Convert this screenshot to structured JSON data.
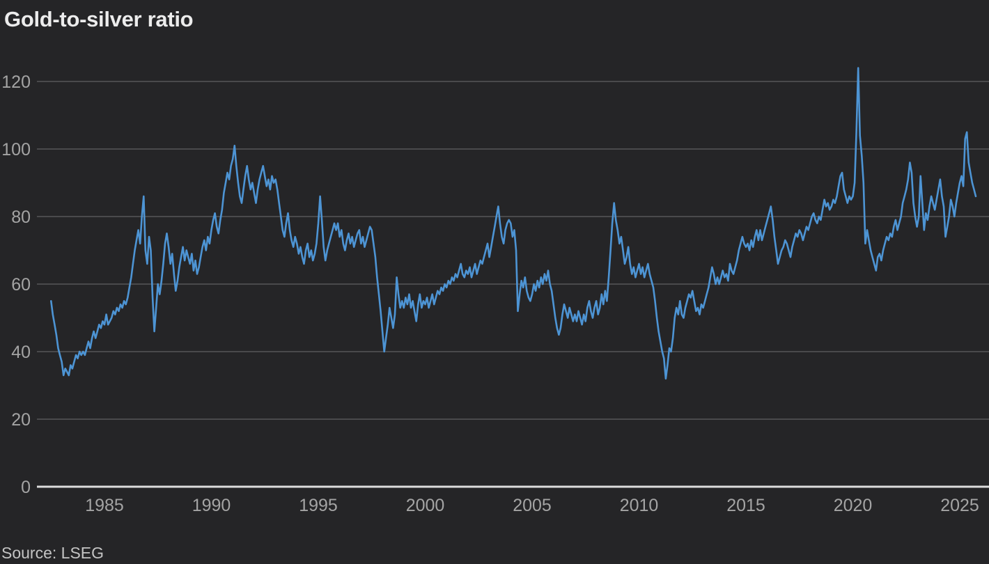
{
  "header": {
    "title": "Gold-to-silver ratio"
  },
  "footer": {
    "source": "Source: LSEG"
  },
  "colors": {
    "background": "#252527",
    "line": "#4d94d4",
    "grid": "#565658",
    "axis_baseline": "#dcdcdc",
    "title_text": "#ececec",
    "tick_text": "#a4a4a4",
    "source_text": "#c4c4c4"
  },
  "chart_data": {
    "type": "line",
    "title": "Gold-to-silver ratio",
    "source": "Source: LSEG",
    "xlabel": "",
    "ylabel": "",
    "legend": "none",
    "grid": "horizontal-only",
    "x_ticks": [
      1985,
      1990,
      1995,
      2000,
      2005,
      2010,
      2015,
      2020,
      2025
    ],
    "y_ticks": [
      0,
      20,
      40,
      60,
      80,
      100,
      120
    ],
    "ylim": [
      0,
      128
    ],
    "xlim_years": [
      1981.9,
      2026.4
    ],
    "x_start_year": 1982.5,
    "x_step_years": 0.0833333,
    "series": [
      {
        "name": "gold-to-silver-ratio",
        "values": [
          55,
          51,
          48,
          45,
          41,
          39,
          37,
          33,
          35,
          34,
          33,
          36,
          35,
          37,
          39,
          38,
          40,
          39,
          40,
          39,
          41,
          43,
          41,
          44,
          46,
          44,
          46,
          48,
          47,
          49,
          48,
          51,
          48,
          49,
          50,
          52,
          51,
          53,
          52,
          54,
          53,
          55,
          54,
          56,
          59,
          62,
          66,
          70,
          73,
          76,
          72,
          80,
          86,
          70,
          66,
          74,
          70,
          56,
          46,
          53,
          60,
          57,
          61,
          66,
          72,
          75,
          71,
          66,
          69,
          63,
          58,
          61,
          65,
          68,
          71,
          67,
          70,
          68,
          66,
          69,
          64,
          67,
          63,
          65,
          68,
          71,
          73,
          70,
          74,
          72,
          76,
          79,
          81,
          77,
          75,
          79,
          82,
          87,
          90,
          93,
          91,
          95,
          97,
          101,
          95,
          90,
          86,
          84,
          88,
          92,
          95,
          91,
          88,
          90,
          87,
          84,
          88,
          91,
          93,
          95,
          92,
          89,
          91,
          88,
          92,
          90,
          91,
          88,
          84,
          80,
          76,
          74,
          78,
          81,
          76,
          73,
          71,
          74,
          72,
          69,
          71,
          68,
          66,
          70,
          72,
          68,
          70,
          67,
          69,
          72,
          78,
          86,
          79,
          71,
          67,
          70,
          72,
          74,
          76,
          78,
          76,
          78,
          74,
          76,
          72,
          70,
          73,
          75,
          72,
          74,
          71,
          73,
          75,
          76,
          72,
          74,
          71,
          73,
          75,
          77,
          76,
          72,
          68,
          62,
          57,
          52,
          46,
          40,
          44,
          48,
          53,
          50,
          47,
          51,
          62,
          57,
          53,
          55,
          53,
          56,
          54,
          57,
          53,
          55,
          52,
          49,
          54,
          57,
          53,
          55,
          54,
          56,
          53,
          55,
          57,
          54,
          56,
          58,
          57,
          59,
          58,
          60,
          59,
          61,
          60,
          62,
          61,
          63,
          62,
          64,
          66,
          63,
          62,
          64,
          63,
          65,
          62,
          64,
          66,
          63,
          65,
          67,
          66,
          68,
          70,
          72,
          68,
          71,
          74,
          77,
          80,
          83,
          78,
          74,
          72,
          76,
          78,
          79,
          78,
          74,
          76,
          70,
          52,
          57,
          61,
          59,
          62,
          58,
          56,
          55,
          57,
          60,
          58,
          61,
          59,
          62,
          60,
          63,
          61,
          64,
          60,
          58,
          54,
          50,
          47,
          45,
          47,
          51,
          54,
          52,
          50,
          53,
          51,
          49,
          51,
          49,
          52,
          50,
          48,
          51,
          49,
          53,
          55,
          52,
          50,
          53,
          55,
          51,
          53,
          57,
          54,
          58,
          55,
          62,
          70,
          78,
          84,
          79,
          76,
          72,
          74,
          70,
          66,
          68,
          71,
          66,
          63,
          65,
          62,
          64,
          66,
          63,
          65,
          62,
          64,
          66,
          63,
          61,
          59,
          55,
          50,
          46,
          43,
          40,
          38,
          32,
          36,
          41,
          40,
          44,
          50,
          53,
          51,
          55,
          51,
          50,
          53,
          55,
          57,
          56,
          58,
          55,
          52,
          53,
          51,
          54,
          53,
          55,
          57,
          59,
          62,
          65,
          63,
          60,
          62,
          60,
          62,
          64,
          62,
          63,
          61,
          66,
          64,
          63,
          65,
          67,
          70,
          72,
          74,
          72,
          71,
          72,
          70,
          73,
          71,
          74,
          76,
          73,
          76,
          73,
          75,
          77,
          79,
          81,
          83,
          79,
          74,
          70,
          66,
          68,
          70,
          71,
          73,
          72,
          70,
          68,
          71,
          73,
          75,
          74,
          76,
          75,
          73,
          75,
          77,
          76,
          78,
          80,
          81,
          79,
          78,
          80,
          79,
          82,
          85,
          83,
          84,
          82,
          83,
          85,
          84,
          86,
          89,
          92,
          93,
          88,
          86,
          84,
          86,
          85,
          86,
          90,
          105,
          124,
          104,
          98,
          90,
          72,
          76,
          73,
          70,
          68,
          66,
          64,
          68,
          69,
          67,
          70,
          72,
          74,
          73,
          75,
          74,
          77,
          79,
          76,
          78,
          80,
          84,
          86,
          88,
          91,
          96,
          93,
          84,
          80,
          77,
          80,
          92,
          84,
          76,
          81,
          79,
          83,
          86,
          84,
          82,
          85,
          88,
          91,
          86,
          83,
          74,
          77,
          80,
          85,
          83,
          80,
          84,
          87,
          90,
          92,
          89,
          103,
          105,
          96,
          93,
          90,
          88,
          86
        ]
      }
    ]
  }
}
